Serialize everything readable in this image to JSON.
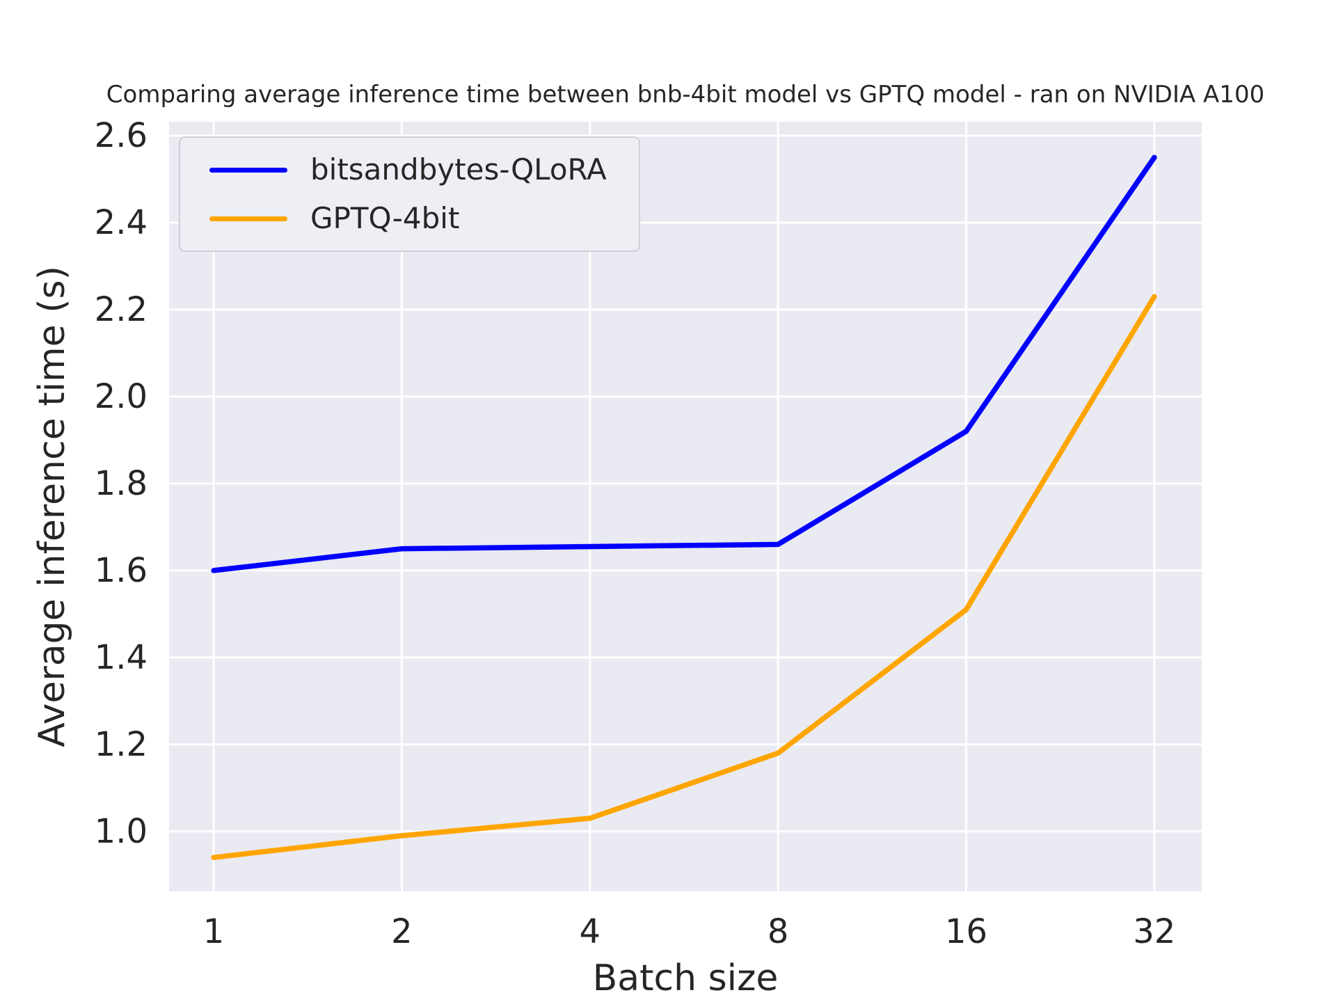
{
  "title": "Comparing average inference time between bnb-4bit model vs GPTQ model - ran on NVIDIA A100",
  "x_axis": {
    "label": "Batch size",
    "ticks": [
      "1",
      "2",
      "4",
      "8",
      "16",
      "32"
    ]
  },
  "y_axis": {
    "label": "Average inference time (s)",
    "ticks": [
      "1.0",
      "1.2",
      "1.4",
      "1.6",
      "1.8",
      "2.0",
      "2.2",
      "2.4",
      "2.6"
    ]
  },
  "legend": {
    "entries": [
      "bitsandbytes-QLoRA",
      "GPTQ-4bit"
    ]
  },
  "colors": {
    "figure_background": "#ffffff",
    "plot_background": "#eaeaf2",
    "grid": "#ffffff",
    "text": "#262626",
    "series_blue": "#0000ff",
    "series_orange": "#ffa500"
  },
  "chart_data": {
    "type": "line",
    "title": "Comparing average inference time between bnb-4bit model vs GPTQ model - ran on NVIDIA A100",
    "xlabel": "Batch size",
    "ylabel": "Average inference time (s)",
    "x": [
      1,
      2,
      4,
      8,
      16,
      32
    ],
    "x_scale": "log2",
    "series": [
      {
        "name": "bitsandbytes-QLoRA",
        "color": "#0000ff",
        "values": [
          1.6,
          1.65,
          1.655,
          1.66,
          1.92,
          2.55
        ]
      },
      {
        "name": "GPTQ-4bit",
        "color": "#ffa500",
        "values": [
          0.94,
          0.99,
          1.03,
          1.18,
          1.51,
          2.23
        ]
      }
    ],
    "y_ticks": [
      1.0,
      1.2,
      1.4,
      1.6,
      1.8,
      2.0,
      2.2,
      2.4,
      2.6
    ],
    "ylim": [
      0.862,
      2.632
    ],
    "xlim_log2": [
      -0.237,
      5.252
    ],
    "grid": true,
    "legend_position": "upper left"
  }
}
